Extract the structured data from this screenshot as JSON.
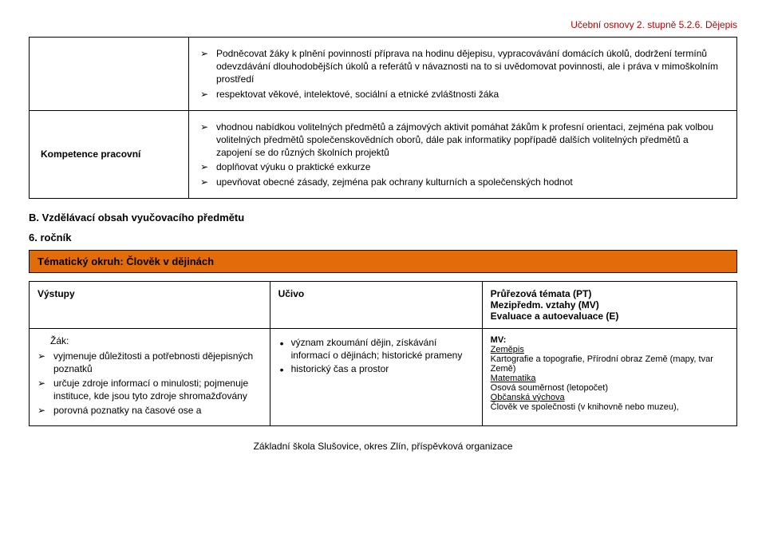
{
  "header": "Učební osnovy 2. stupně  5.2.6. Dějepis",
  "topTable": {
    "row1": {
      "items": [
        "Podněcovat žáky k plnění povinností příprava na hodinu dějepisu, vypracovávání domácích úkolů, dodržení termínů odevzdávání dlouhodobějších úkolů a referátů v návaznosti na to si uvědomovat povinnosti, ale i práva v mimoškolním prostředí",
        "respektovat věkové, intelektové, sociální a etnické zvláštnosti žáka"
      ]
    },
    "row2": {
      "label": "Kompetence pracovní",
      "items": [
        "vhodnou nabídkou volitelných předmětů a zájmových aktivit pomáhat žákům k profesní orientaci, zejména pak volbou volitelných předmětů společenskovědních oborů, dále pak informatiky popřípadě dalších volitelných předmětů a zapojení se do různých školních projektů",
        "doplňovat výuku o praktické exkurze",
        "upevňovat obecné zásady, zejména pak ochrany kulturních a společenských hodnot"
      ]
    }
  },
  "sectionB": "B. Vzdělávací obsah vyučovacího předmětu",
  "grade": "6. ročník",
  "topic": "Tématický okruh: Člověk v dějinách",
  "contentTable": {
    "headers": {
      "col1": "Výstupy",
      "col2": "Učivo",
      "col3a": "Průřezová témata (PT)",
      "col3b": "Mezipředm. vztahy (MV)",
      "col3c": "Evaluace a autoevaluace (E)"
    },
    "row": {
      "zakLabel": "Žák:",
      "col1Items": [
        "vyjmenuje důležitosti  a potřebnosti dějepisných poznatků",
        "určuje zdroje informací o minulosti; pojmenuje instituce, kde   jsou tyto zdroje shromažďovány",
        "porovná poznatky na časové ose a"
      ],
      "col2Items": [
        "význam zkoumání dějin, získávání informací o dějinách; historické prameny",
        "historický čas a prostor"
      ],
      "col3": {
        "mvLabel": "MV:",
        "zemepis": "Zeměpis",
        "zemepisDetail": "Kartografie a topografie, Přírodní obraz Země (mapy, tvar Země)",
        "matematika": "Matematika",
        "matematikaDetail": "Osová souměrnost (letopočet)",
        "obcanska": "Občanská výchova",
        "obcanskaDetail": "Člověk ve společnosti (v knihovně nebo muzeu),"
      }
    }
  },
  "footer": "Základní škola Slušovice, okres Zlín, příspěvková organizace"
}
